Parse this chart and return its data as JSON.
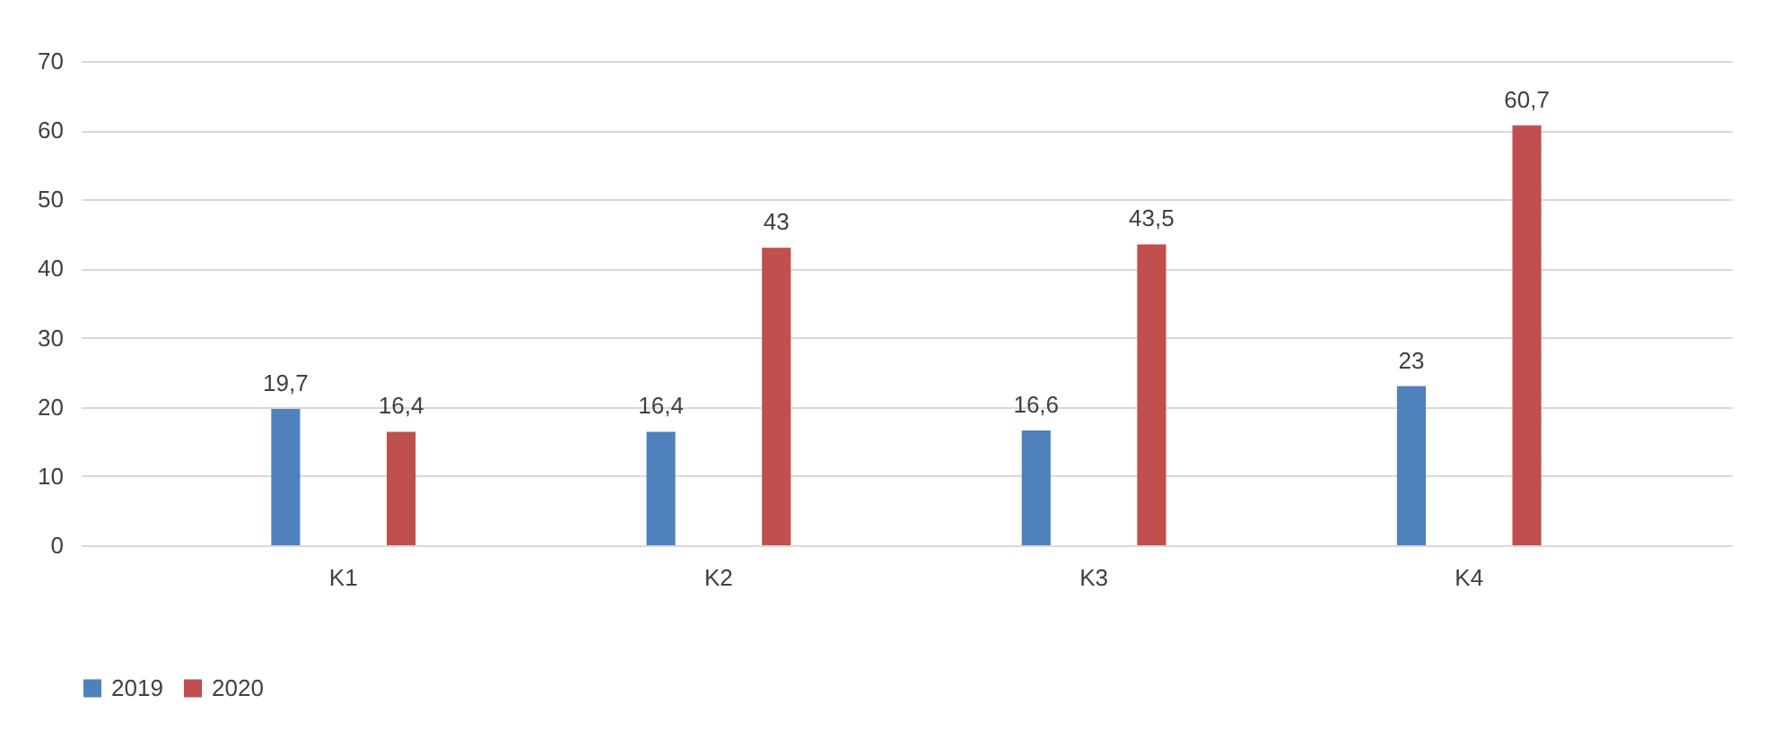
{
  "chart_data": {
    "type": "bar",
    "categories": [
      "K1",
      "K2",
      "K3",
      "K4"
    ],
    "series": [
      {
        "name": "2019",
        "color": "#4f81bd",
        "values": [
          19.7,
          16.4,
          16.6,
          23
        ],
        "value_labels": [
          "19,7",
          "16,4",
          "16,6",
          "23"
        ]
      },
      {
        "name": "2020",
        "color": "#c0504d",
        "values": [
          16.4,
          43,
          43.5,
          60.7
        ],
        "value_labels": [
          "16,4",
          "43",
          "43,5",
          "60,7"
        ]
      }
    ],
    "ylim": [
      0,
      70
    ],
    "yticks": [
      0,
      10,
      20,
      30,
      40,
      50,
      60,
      70
    ],
    "grid": "y",
    "legend": "bottom"
  }
}
